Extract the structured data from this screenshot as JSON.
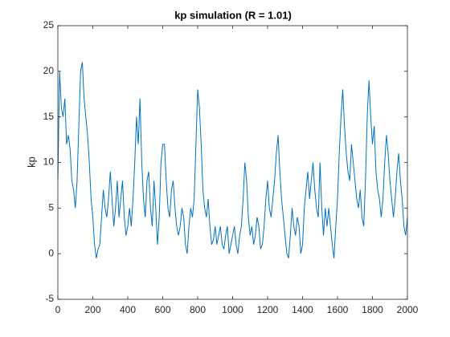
{
  "chart_data": {
    "type": "line",
    "title": "kp simulation (R = 1.01)",
    "y_label": "kp",
    "color": "#0072bd",
    "x": [
      0,
      10,
      20,
      30,
      40,
      50,
      60,
      70,
      80,
      90,
      100,
      110,
      120,
      130,
      140,
      150,
      160,
      170,
      180,
      190,
      200,
      210,
      220,
      230,
      240,
      250,
      260,
      270,
      280,
      290,
      300,
      310,
      320,
      330,
      340,
      350,
      360,
      370,
      380,
      390,
      400,
      410,
      420,
      430,
      440,
      450,
      460,
      470,
      480,
      490,
      500,
      510,
      520,
      530,
      540,
      550,
      560,
      570,
      580,
      590,
      600,
      610,
      620,
      630,
      640,
      650,
      660,
      670,
      680,
      690,
      700,
      710,
      720,
      730,
      740,
      750,
      760,
      770,
      780,
      790,
      800,
      810,
      820,
      830,
      840,
      850,
      860,
      870,
      880,
      890,
      900,
      910,
      920,
      930,
      940,
      950,
      960,
      970,
      980,
      990,
      1000,
      1010,
      1020,
      1030,
      1040,
      1050,
      1060,
      1070,
      1080,
      1090,
      1100,
      1110,
      1120,
      1130,
      1140,
      1150,
      1160,
      1170,
      1180,
      1190,
      1200,
      1210,
      1220,
      1230,
      1240,
      1250,
      1260,
      1270,
      1280,
      1290,
      1300,
      1310,
      1320,
      1330,
      1340,
      1350,
      1360,
      1370,
      1380,
      1390,
      1400,
      1410,
      1420,
      1430,
      1440,
      1450,
      1460,
      1470,
      1480,
      1490,
      1500,
      1510,
      1520,
      1530,
      1540,
      1550,
      1560,
      1570,
      1580,
      1590,
      1600,
      1610,
      1620,
      1630,
      1640,
      1650,
      1660,
      1670,
      1680,
      1690,
      1700,
      1710,
      1720,
      1730,
      1740,
      1750,
      1760,
      1770,
      1780,
      1790,
      1800,
      1810,
      1820,
      1830,
      1840,
      1850,
      1860,
      1870,
      1880,
      1890,
      1900,
      1910,
      1920,
      1930,
      1940,
      1950,
      1960,
      1970,
      1980,
      1990,
      2000
    ],
    "values": [
      8,
      20,
      16,
      15,
      17,
      12,
      13,
      11.5,
      8,
      7,
      5,
      8,
      14,
      20,
      21,
      17,
      15,
      13,
      10,
      6,
      4,
      1,
      -0.5,
      0.5,
      1,
      4,
      7,
      5,
      4,
      6,
      9,
      6,
      3,
      5,
      8,
      4,
      6,
      8,
      4,
      2,
      3,
      5,
      3,
      6,
      10,
      15,
      12,
      17,
      10,
      6,
      4,
      8,
      9,
      5,
      3,
      8,
      5,
      1,
      4,
      10,
      12,
      12,
      8,
      5,
      4,
      7,
      8,
      5,
      3,
      2,
      3,
      5,
      4,
      1,
      0,
      3,
      5,
      4,
      6,
      12,
      18,
      16,
      12,
      7,
      5,
      4,
      6,
      3,
      1,
      1.5,
      3,
      1,
      2,
      3,
      1,
      0.5,
      2,
      3,
      0,
      1,
      2,
      3,
      1,
      0,
      2,
      3,
      6,
      10,
      8,
      4,
      2,
      3,
      1,
      2,
      4,
      3,
      0.5,
      1,
      3,
      6,
      8,
      5,
      4,
      6,
      8,
      11,
      13,
      9,
      6,
      4,
      2,
      0,
      -0.5,
      2,
      5,
      3,
      2,
      4,
      3,
      0,
      1,
      5,
      7,
      9,
      6,
      8,
      10,
      7,
      5,
      4,
      10,
      5,
      2,
      5,
      3,
      5,
      3,
      1,
      -0.5,
      3,
      6,
      11,
      15,
      18,
      14,
      11,
      9,
      8,
      12,
      10,
      8,
      6,
      5,
      7,
      4,
      3,
      8,
      15,
      19,
      15,
      12,
      14,
      9,
      7,
      6,
      4,
      6,
      10,
      13,
      11,
      8,
      6,
      4,
      6,
      9,
      11,
      8,
      6,
      3,
      2,
      4
    ],
    "xlim": [
      0,
      2000
    ],
    "xticks": [
      0,
      200,
      400,
      600,
      800,
      1000,
      1200,
      1400,
      1600,
      1800,
      2000
    ],
    "ylim": [
      -5,
      25
    ],
    "yticks": [
      -5,
      0,
      5,
      10,
      15,
      20,
      25
    ],
    "grid": false
  }
}
